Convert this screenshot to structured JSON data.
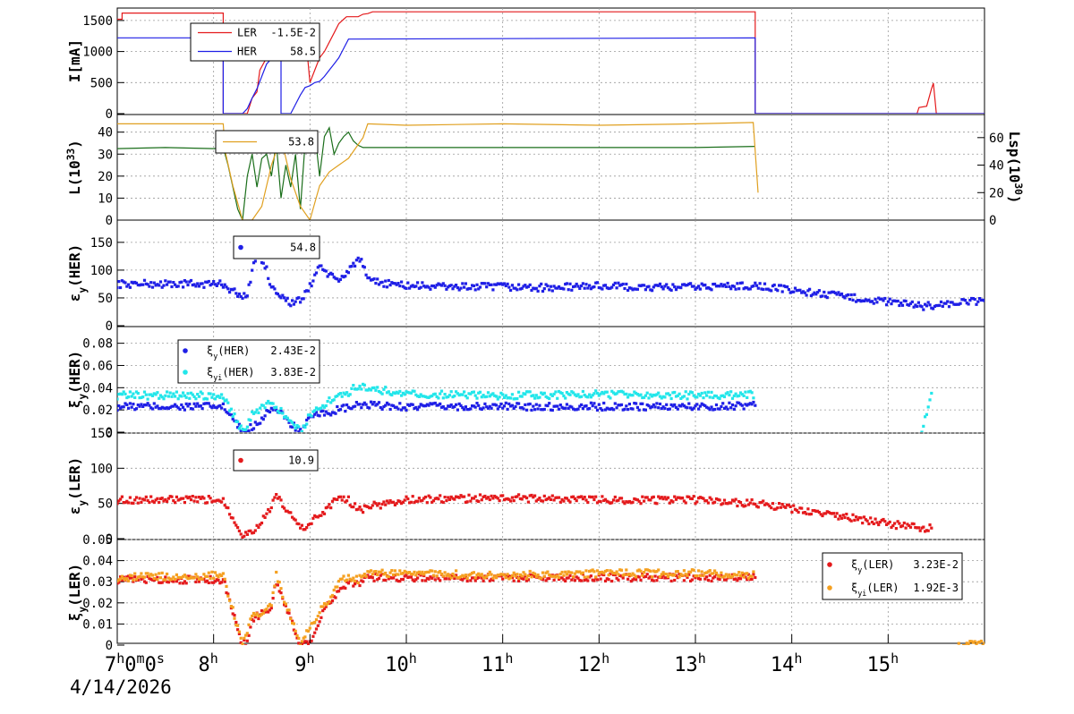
{
  "date_label": "4/14/2026",
  "x_axis": {
    "start_label": "7h0m0s",
    "ticks": [
      {
        "h": 8,
        "label": "8h"
      },
      {
        "h": 9,
        "label": "9h"
      },
      {
        "h": 10,
        "label": "10h"
      },
      {
        "h": 11,
        "label": "11h"
      },
      {
        "h": 12,
        "label": "12h"
      },
      {
        "h": 13,
        "label": "13h"
      },
      {
        "h": 14,
        "label": "14h"
      },
      {
        "h": 15,
        "label": "15h"
      }
    ],
    "range": [
      7.0,
      16.0
    ],
    "grid": true
  },
  "colors": {
    "ler": "#e41a1c",
    "her": "#1f1fe6",
    "luminosity": "#1a6e1a",
    "lsp": "#e0a020",
    "xiyi_her": "#22e6ea",
    "xiyi_ler": "#f5a020"
  },
  "chart_data": [
    {
      "type": "line",
      "ylabel": "I[mA]",
      "ylim": [
        0,
        1700
      ],
      "yticks": [
        0,
        500,
        1000,
        1500
      ],
      "legend": [
        {
          "name": "LER",
          "value": "-1.5E-2",
          "color_key": "ler"
        },
        {
          "name": "HER",
          "value": "58.5",
          "color_key": "her"
        }
      ],
      "series": [
        {
          "name": "LER",
          "color_key": "ler",
          "x": [
            7.0,
            7.05,
            7.05,
            8.1,
            8.1,
            8.35,
            8.4,
            8.45,
            8.48,
            8.55,
            8.6,
            8.62,
            8.95,
            9.0,
            9.05,
            9.1,
            9.15,
            9.2,
            9.25,
            9.3,
            9.35,
            9.38,
            9.5,
            9.55,
            9.6,
            9.65,
            13.62,
            13.62,
            15.3,
            15.32,
            15.4,
            15.45,
            15.47,
            15.5,
            16.0
          ],
          "y": [
            1520,
            1520,
            1620,
            1620,
            0,
            0,
            250,
            350,
            700,
            900,
            1150,
            1350,
            1350,
            500,
            700,
            900,
            1000,
            1150,
            1300,
            1450,
            1520,
            1560,
            1560,
            1600,
            1610,
            1640,
            1640,
            0,
            0,
            100,
            120,
            400,
            490,
            0,
            0
          ]
        },
        {
          "name": "HER",
          "color_key": "her",
          "x": [
            7.0,
            8.1,
            8.1,
            8.3,
            8.35,
            8.4,
            8.45,
            8.5,
            8.55,
            8.58,
            8.7,
            8.7,
            8.8,
            8.85,
            8.9,
            8.95,
            9.0,
            9.05,
            9.1,
            9.15,
            9.2,
            9.25,
            9.3,
            9.35,
            9.4,
            13.62,
            13.62,
            16.0
          ],
          "y": [
            1220,
            1220,
            0,
            0,
            80,
            250,
            400,
            600,
            800,
            850,
            1180,
            0,
            0,
            150,
            300,
            420,
            450,
            500,
            520,
            600,
            700,
            800,
            900,
            1050,
            1200,
            1220,
            0,
            0
          ]
        }
      ]
    },
    {
      "type": "line",
      "ylabel": "L(10^33)",
      "ylim": [
        0,
        48
      ],
      "yticks": [
        0,
        10,
        20,
        30,
        40
      ],
      "y2label": "Lsp(10^30)",
      "y2lim": [
        0,
        76.8
      ],
      "y2ticks": [
        0,
        20,
        40,
        60
      ],
      "legend": [
        {
          "name": "",
          "value": "53.8",
          "color_key": "lsp"
        }
      ],
      "series": [
        {
          "name": "L",
          "color_key": "luminosity",
          "x": [
            7.0,
            7.5,
            8.0,
            8.1,
            8.15,
            8.2,
            8.25,
            8.3,
            8.35,
            8.4,
            8.45,
            8.5,
            8.55,
            8.6,
            8.65,
            8.7,
            8.75,
            8.8,
            8.85,
            8.9,
            8.95,
            9.0,
            9.05,
            9.1,
            9.15,
            9.2,
            9.25,
            9.3,
            9.35,
            9.4,
            9.45,
            9.5,
            9.55,
            9.6,
            10.0,
            11.0,
            12.0,
            13.0,
            13.62
          ],
          "y": [
            32.5,
            33,
            32.5,
            33,
            25,
            15,
            5,
            0,
            20,
            30,
            15,
            28,
            30,
            20,
            35,
            10,
            25,
            15,
            30,
            5,
            35,
            32,
            40,
            20,
            38,
            42,
            30,
            35,
            38,
            40,
            36,
            34,
            33,
            33,
            33,
            33,
            33,
            33,
            33.5
          ]
        },
        {
          "name": "Lsp",
          "color_key": "lsp",
          "axis": "right",
          "x": [
            7.0,
            8.1,
            8.12,
            8.2,
            8.3,
            8.4,
            8.5,
            8.6,
            8.7,
            8.8,
            8.9,
            9.0,
            9.1,
            9.2,
            9.3,
            9.4,
            9.5,
            9.55,
            9.6,
            10.0,
            11.0,
            12.0,
            13.0,
            13.6,
            13.65
          ],
          "y": [
            70,
            70,
            50,
            25,
            0,
            0,
            10,
            40,
            60,
            30,
            10,
            0,
            25,
            35,
            40,
            45,
            55,
            60,
            70,
            69,
            70,
            69,
            70,
            71,
            20
          ]
        }
      ]
    },
    {
      "type": "scatter",
      "ylabel": "εy(HER)",
      "ylim": [
        0,
        190
      ],
      "yticks": [
        0,
        50,
        100,
        150
      ],
      "legend": [
        {
          "name": "",
          "value": "54.8",
          "color_key": "her"
        }
      ],
      "series": [
        {
          "name": "εy(HER)",
          "color_key": "her",
          "x": [
            7.0,
            8.1,
            8.3,
            8.35,
            8.45,
            8.5,
            8.55,
            8.6,
            8.8,
            8.9,
            9.0,
            9.1,
            9.2,
            9.3,
            9.4,
            9.5,
            9.55,
            9.6,
            10.0,
            10.5,
            11.0,
            11.5,
            12.0,
            12.5,
            13.0,
            13.62,
            15.35,
            16.0
          ],
          "y": [
            75,
            75,
            50,
            60,
            130,
            120,
            100,
            70,
            40,
            45,
            70,
            110,
            90,
            80,
            100,
            120,
            110,
            80,
            72,
            70,
            70,
            68,
            72,
            68,
            70,
            72,
            35,
            45
          ]
        }
      ]
    },
    {
      "type": "scatter",
      "ylabel": "ξy(HER)",
      "ylim": [
        0,
        0.095
      ],
      "yticks": [
        0,
        0.02,
        0.04,
        0.06,
        0.08
      ],
      "legend": [
        {
          "name": "ξy(HER)",
          "value": "2.43E-2",
          "color_key": "her"
        },
        {
          "name": "ξyi(HER)",
          "value": "3.83E-2",
          "color_key": "xiyi_her"
        }
      ],
      "series": [
        {
          "name": "ξy(HER)",
          "color_key": "her",
          "x": [
            7.0,
            8.1,
            8.3,
            8.4,
            8.5,
            8.55,
            8.6,
            8.65,
            8.9,
            9.0,
            9.1,
            9.2,
            9.3,
            9.4,
            9.5,
            9.6,
            10.0,
            11.0,
            12.0,
            13.0,
            13.62
          ],
          "y": [
            0.023,
            0.023,
            0.0,
            0.005,
            0.012,
            0.018,
            0.022,
            0.02,
            0.0,
            0.012,
            0.016,
            0.018,
            0.02,
            0.022,
            0.024,
            0.024,
            0.023,
            0.023,
            0.023,
            0.023,
            0.024
          ]
        },
        {
          "name": "ξyi(HER)",
          "color_key": "xiyi_her",
          "x": [
            7.0,
            8.1,
            8.3,
            8.4,
            8.5,
            8.6,
            8.9,
            9.0,
            9.1,
            9.2,
            9.3,
            9.4,
            9.5,
            9.6,
            10.0,
            11.0,
            12.0,
            13.0,
            13.62,
            15.35,
            15.45
          ],
          "y": [
            0.033,
            0.033,
            0.0,
            0.015,
            0.022,
            0.028,
            0.0,
            0.015,
            0.022,
            0.028,
            0.033,
            0.036,
            0.042,
            0.04,
            0.034,
            0.033,
            0.034,
            0.033,
            0.034,
            0.0,
            0.035
          ]
        }
      ]
    },
    {
      "type": "scatter",
      "ylabel": "εy(LER)",
      "ylim": [
        0,
        150
      ],
      "yticks": [
        0,
        50,
        100,
        150
      ],
      "legend": [
        {
          "name": "",
          "value": "10.9",
          "color_key": "ler"
        }
      ],
      "series": [
        {
          "name": "εy(LER)",
          "color_key": "ler",
          "x": [
            7.0,
            8.1,
            8.3,
            8.4,
            8.5,
            8.55,
            8.6,
            8.65,
            8.9,
            9.0,
            9.1,
            9.2,
            9.3,
            9.4,
            9.5,
            9.6,
            10.0,
            11.0,
            12.0,
            13.0,
            13.62,
            15.3,
            15.45
          ],
          "y": [
            55,
            55,
            5,
            10,
            25,
            35,
            45,
            60,
            15,
            20,
            35,
            45,
            60,
            55,
            40,
            45,
            55,
            58,
            55,
            55,
            50,
            15,
            15
          ]
        }
      ]
    },
    {
      "type": "scatter",
      "ylabel": "ξy(LER)",
      "ylim": [
        0,
        0.05
      ],
      "yticks": [
        0,
        0.01,
        0.02,
        0.03,
        0.04,
        0.05
      ],
      "legend": [
        {
          "name": "ξy(LER)",
          "value": "3.23E-2",
          "color_key": "ler"
        },
        {
          "name": "ξyi(LER)",
          "value": "1.92E-3",
          "color_key": "xiyi_ler"
        }
      ],
      "series": [
        {
          "name": "ξy(LER)",
          "color_key": "ler",
          "x": [
            7.0,
            8.1,
            8.3,
            8.35,
            8.4,
            8.5,
            8.6,
            8.65,
            8.9,
            9.0,
            9.1,
            9.2,
            9.3,
            9.4,
            9.5,
            9.6,
            10.0,
            11.0,
            12.0,
            13.0,
            13.62
          ],
          "y": [
            0.031,
            0.031,
            0.0,
            0.002,
            0.012,
            0.015,
            0.018,
            0.03,
            0.0,
            0.002,
            0.012,
            0.02,
            0.026,
            0.03,
            0.029,
            0.032,
            0.032,
            0.032,
            0.032,
            0.032,
            0.032
          ]
        },
        {
          "name": "ξyi(LER)",
          "color_key": "xiyi_ler",
          "x": [
            7.0,
            8.1,
            8.3,
            8.35,
            8.4,
            8.5,
            8.6,
            8.65,
            8.9,
            9.0,
            9.1,
            9.2,
            9.3,
            9.4,
            9.5,
            9.6,
            10.0,
            11.0,
            12.0,
            13.0,
            13.62,
            15.7,
            16.0
          ],
          "y": [
            0.032,
            0.033,
            0.0,
            0.006,
            0.014,
            0.016,
            0.02,
            0.033,
            0.0,
            0.009,
            0.016,
            0.022,
            0.03,
            0.032,
            0.031,
            0.034,
            0.034,
            0.033,
            0.034,
            0.034,
            0.033,
            0.0,
            0.001
          ]
        }
      ]
    }
  ]
}
